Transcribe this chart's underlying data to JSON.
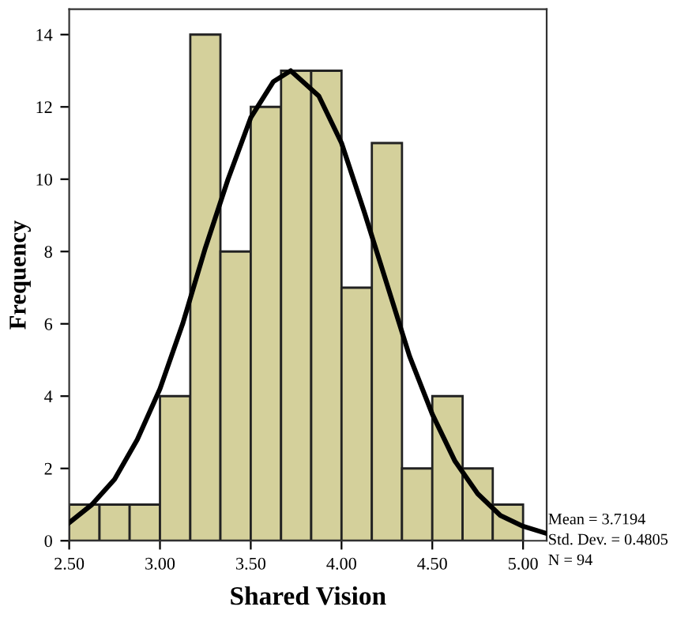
{
  "chart_data": {
    "type": "histogram",
    "xlabel": "Shared Vision",
    "ylabel": "Frequency",
    "series": [
      {
        "color": "#d4d09b",
        "bins": [
          2.5,
          2.667,
          2.833,
          3.0,
          3.167,
          3.333,
          3.5,
          3.667,
          3.833,
          4.0,
          4.167,
          4.333,
          4.5,
          4.667,
          4.833,
          5.0
        ],
        "values": [
          1,
          1,
          1,
          4,
          14,
          8,
          12,
          13,
          13,
          7,
          11,
          2,
          4,
          2,
          1
        ]
      },
      {
        "type": "line",
        "color": "#000000",
        "x": [
          2.5,
          2.625,
          2.75,
          2.875,
          3.0,
          3.125,
          3.25,
          3.375,
          3.5,
          3.625,
          3.72,
          3.875,
          4.0,
          4.125,
          4.25,
          4.375,
          4.5,
          4.625,
          4.75,
          4.875,
          5.0,
          5.13
        ],
        "values": [
          0.5,
          1.0,
          1.7,
          2.8,
          4.2,
          6.0,
          8.1,
          10.0,
          11.7,
          12.7,
          13.0,
          12.3,
          11.0,
          9.1,
          7.1,
          5.1,
          3.5,
          2.2,
          1.3,
          0.7,
          0.4,
          0.2
        ]
      }
    ],
    "xlim": [
      2.5,
      5.13
    ],
    "ylim": [
      0,
      14.7
    ],
    "xticks": [
      {
        "value": 2.5,
        "label": "2.50"
      },
      {
        "value": 3.0,
        "label": "3.00"
      },
      {
        "value": 3.5,
        "label": "3.50"
      },
      {
        "value": 4.0,
        "label": "4.00"
      },
      {
        "value": 4.5,
        "label": "4.50"
      },
      {
        "value": 5.0,
        "label": "5.00"
      }
    ],
    "yticks": [
      0,
      2,
      4,
      6,
      8,
      10,
      12,
      14
    ],
    "annotations": [
      "Mean = 3.7194",
      "Std. Dev. = 0.4805",
      "N = 94"
    ]
  }
}
